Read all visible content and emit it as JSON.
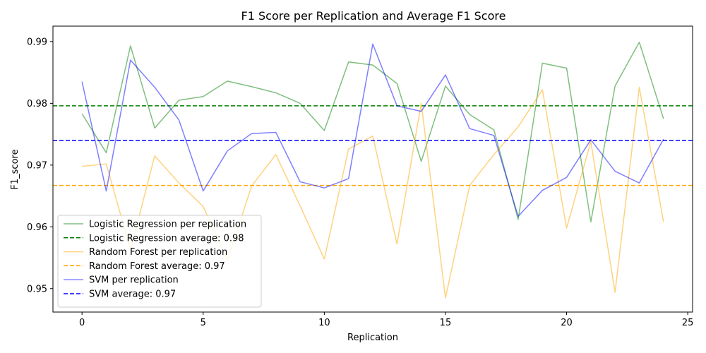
{
  "chart_data": {
    "type": "line",
    "title": "F1 Score per Replication and Average F1 Score",
    "xlabel": "Replication",
    "ylabel": "F1_score",
    "xlim": [
      -1.2,
      25.2
    ],
    "ylim": [
      0.9462,
      0.9925
    ],
    "xticks": [
      0,
      5,
      10,
      15,
      20,
      25
    ],
    "yticks": [
      0.95,
      0.96,
      0.97,
      0.98,
      0.99
    ],
    "grid": false,
    "legend_position": "lower-left",
    "x": [
      0,
      1,
      2,
      3,
      4,
      5,
      6,
      7,
      8,
      9,
      10,
      11,
      12,
      13,
      14,
      15,
      16,
      17,
      18,
      19,
      20,
      21,
      22,
      23,
      24
    ],
    "series": [
      {
        "name": "Logistic Regression per replication",
        "color": "#008000",
        "style": "solid",
        "values": [
          0.9783,
          0.972,
          0.9893,
          0.976,
          0.9805,
          0.9811,
          0.9836,
          0.9827,
          0.9817,
          0.98,
          0.9756,
          0.9867,
          0.9862,
          0.9832,
          0.9706,
          0.9828,
          0.9782,
          0.9757,
          0.9612,
          0.9865,
          0.9857,
          0.9608,
          0.9828,
          0.9899,
          0.9775
        ]
      },
      {
        "name": "Logistic Regression average: 0.98",
        "color": "#008000",
        "style": "dashed",
        "average": 0.9796
      },
      {
        "name": "Random Forest per replication",
        "color": "#ffa500",
        "style": "solid",
        "values": [
          0.9698,
          0.9702,
          0.9563,
          0.9715,
          0.9671,
          0.9633,
          0.9546,
          0.9666,
          0.9717,
          0.9634,
          0.9548,
          0.9726,
          0.9747,
          0.9572,
          0.98,
          0.9485,
          0.9667,
          0.9717,
          0.9762,
          0.9822,
          0.9598,
          0.9738,
          0.9494,
          0.9826,
          0.9608
        ]
      },
      {
        "name": "Random Forest average: 0.97",
        "color": "#ffa500",
        "style": "dashed",
        "average": 0.9667
      },
      {
        "name": "SVM per replication",
        "color": "#0000ff",
        "style": "solid",
        "values": [
          0.9835,
          0.9658,
          0.987,
          0.9826,
          0.9773,
          0.9658,
          0.9723,
          0.9751,
          0.9753,
          0.9673,
          0.9663,
          0.9678,
          0.9896,
          0.9796,
          0.9787,
          0.9846,
          0.9759,
          0.9748,
          0.9617,
          0.9659,
          0.968,
          0.9741,
          0.969,
          0.9671,
          0.9742
        ]
      },
      {
        "name": "SVM average: 0.97",
        "color": "#0000ff",
        "style": "dashed",
        "average": 0.974
      }
    ]
  }
}
